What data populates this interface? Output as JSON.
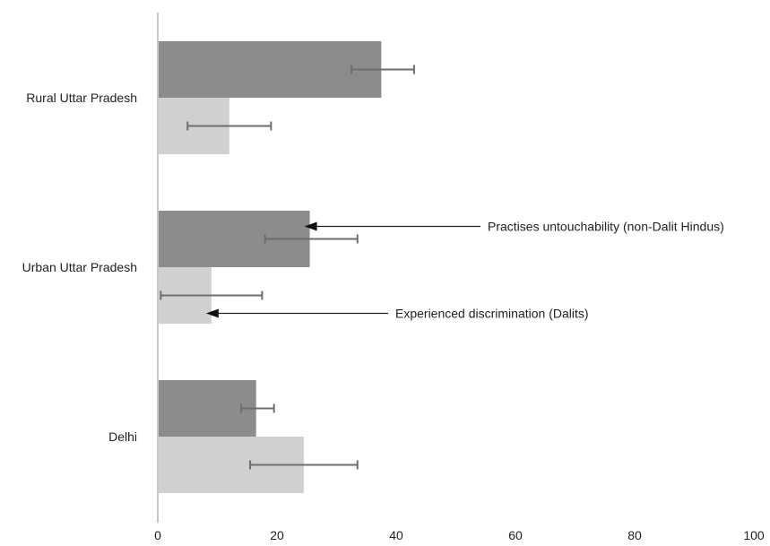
{
  "chart_data": {
    "type": "bar",
    "orientation": "horizontal",
    "categories": [
      "Rural Uttar Pradesh",
      "Urban Uttar Pradesh",
      "Delhi"
    ],
    "series": [
      {
        "name": "Practises untouchability (non-Dalit Hindus)",
        "color": "#8c8c8c",
        "values": [
          37.5,
          25.5,
          16.5
        ],
        "error_low": [
          32.5,
          18.0,
          14.0
        ],
        "error_high": [
          43.0,
          33.5,
          19.5
        ]
      },
      {
        "name": "Experienced discrimination (Dalits)",
        "color": "#d0d0d0",
        "values": [
          12.0,
          9.0,
          24.5
        ],
        "error_low": [
          5.0,
          0.5,
          15.5
        ],
        "error_high": [
          19.0,
          17.5,
          33.5
        ]
      }
    ],
    "xlim": [
      0,
      100
    ],
    "xticks": [
      "0",
      "20",
      "40",
      "60",
      "80",
      "100"
    ],
    "xlabel": "",
    "ylabel": "",
    "title": "",
    "grid": false,
    "annotations": [
      {
        "text": "Practises untouchability (non-Dalit Hindus)",
        "series": 0,
        "category": 1
      },
      {
        "text": "Experienced discrimination (Dalits)",
        "series": 1,
        "category": 1
      }
    ]
  }
}
